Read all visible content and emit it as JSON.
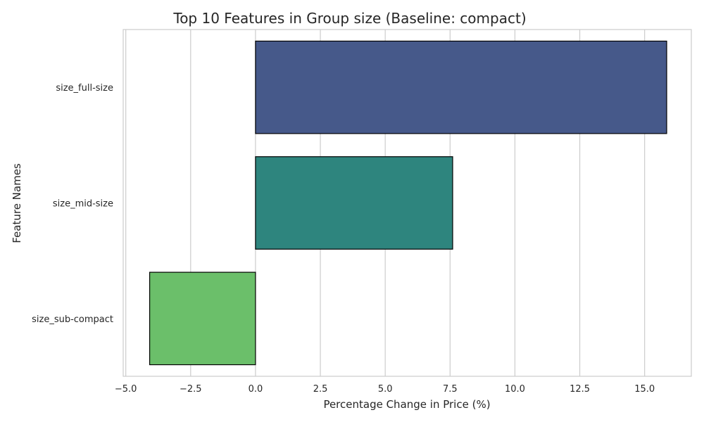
{
  "chart_data": {
    "type": "bar",
    "orientation": "horizontal",
    "title": "Top 10 Features in Group size (Baseline: compact)",
    "xlabel": "Percentage Change in Price (%)",
    "ylabel": "Feature Names",
    "categories": [
      "size_full-size",
      "size_mid-size",
      "size_sub-compact"
    ],
    "values": [
      15.85,
      7.6,
      -4.08
    ],
    "colors": [
      "#46598a",
      "#2e857e",
      "#6bbf6a"
    ],
    "xlim": [
      -5.1,
      16.8
    ],
    "xticks": [
      -5.0,
      -2.5,
      0.0,
      2.5,
      5.0,
      7.5,
      10.0,
      12.5,
      15.0
    ],
    "xtick_labels": [
      "−5.0",
      "−2.5",
      "0.0",
      "2.5",
      "5.0",
      "7.5",
      "10.0",
      "12.5",
      "15.0"
    ],
    "grid": true,
    "legend": "none"
  }
}
